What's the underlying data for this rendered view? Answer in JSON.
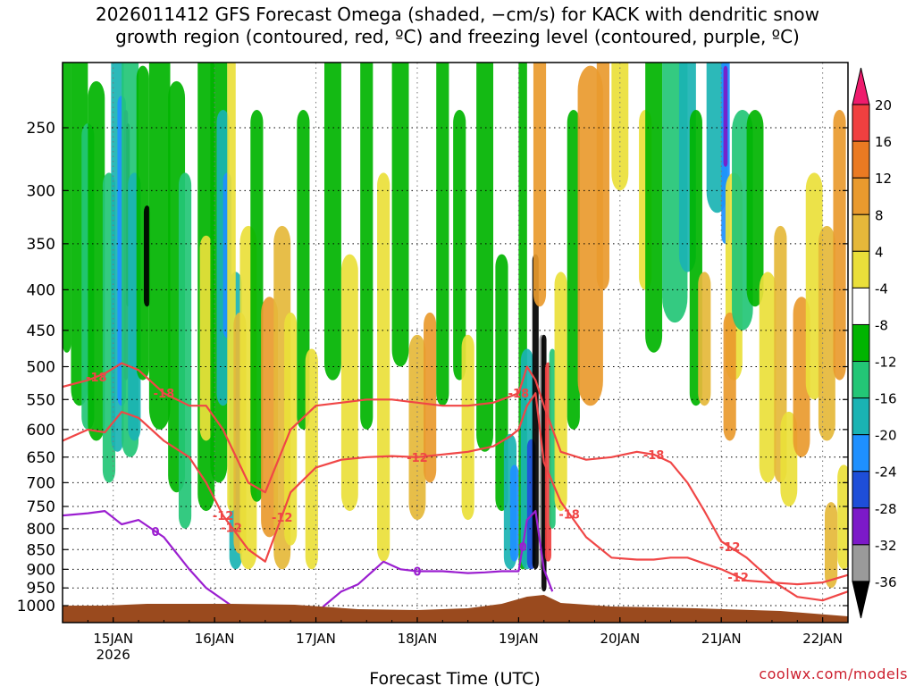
{
  "header": {
    "title_line1": "2026011412 GFS Forecast Omega (shaded, −cm/s) for KACK with dendritic snow",
    "title_line2": "growth region (contoured, red, ºC) and freezing level (contoured, purple, ºC)"
  },
  "footer": {
    "credit": "coolwx.com/models"
  },
  "chart_data": {
    "type": "heatmap",
    "title": "2026011412 GFS Forecast Omega (shaded, −cm/s) for KACK with dendritic snow growth region (contoured, red, ºC) and freezing level (contoured, purple, ºC)",
    "xlabel": "Forecast Time (UTC)",
    "ylabel": "",
    "x_range_hours": [
      0,
      186
    ],
    "x_ticks": [
      {
        "hour": 12,
        "label": "15JAN",
        "sublabel": "2026"
      },
      {
        "hour": 36,
        "label": "16JAN"
      },
      {
        "hour": 60,
        "label": "17JAN"
      },
      {
        "hour": 84,
        "label": "18JAN"
      },
      {
        "hour": 108,
        "label": "19JAN"
      },
      {
        "hour": 132,
        "label": "20JAN"
      },
      {
        "hour": 156,
        "label": "21JAN"
      },
      {
        "hour": 180,
        "label": "22JAN"
      }
    ],
    "y_range_hpa": [
      1000,
      200
    ],
    "y_ticks": [
      250,
      300,
      350,
      400,
      450,
      500,
      550,
      600,
      650,
      700,
      750,
      800,
      850,
      900,
      950,
      1000
    ],
    "colorbar": {
      "units": "−cm/s",
      "labels": [
        20,
        16,
        12,
        8,
        4,
        -4,
        -8,
        -12,
        -16,
        -20,
        -24,
        -28,
        -32,
        -36
      ],
      "colors": [
        "#ee1c6d",
        "#f04040",
        "#ea7a22",
        "#e99a2e",
        "#e5b83a",
        "#eadf3a",
        "#ffffff",
        "#00b400",
        "#23c676",
        "#1ab3b3",
        "#1e90ff",
        "#1e4ed8",
        "#7c19c8",
        "#9a9a9a",
        "#000000"
      ]
    },
    "contour_labels_red": [
      "-18",
      "-18",
      "-12",
      "-12",
      "-18",
      "-12",
      "-12",
      "-18",
      "-18",
      "-12",
      "-12"
    ],
    "contour_labels_purple": [
      "0",
      "0",
      "0"
    ],
    "series": [
      {
        "name": "-12C level (red)",
        "hours": [
          0,
          6,
          10,
          14,
          18,
          24,
          30,
          34,
          38,
          44,
          48,
          54,
          60,
          66,
          72,
          78,
          84,
          90,
          96,
          102,
          106,
          108,
          110,
          112,
          114,
          118,
          124,
          130,
          136,
          140,
          144,
          148,
          152,
          156,
          162,
          168,
          174,
          180,
          186
        ],
        "values": [
          620,
          600,
          605,
          570,
          580,
          620,
          650,
          700,
          770,
          850,
          880,
          720,
          670,
          655,
          650,
          648,
          650,
          645,
          640,
          630,
          612,
          600,
          560,
          540,
          660,
          740,
          820,
          870,
          875,
          875,
          870,
          870,
          885,
          900,
          930,
          935,
          940,
          935,
          915
        ]
      },
      {
        "name": "-18C level (red)",
        "hours": [
          0,
          6,
          10,
          14,
          18,
          24,
          30,
          34,
          38,
          44,
          48,
          54,
          60,
          66,
          72,
          78,
          84,
          90,
          96,
          102,
          106,
          108,
          110,
          112,
          114,
          118,
          124,
          130,
          136,
          140,
          144,
          148,
          152,
          156,
          162,
          168,
          174,
          180,
          186
        ],
        "values": [
          530,
          520,
          510,
          495,
          505,
          540,
          560,
          560,
          600,
          700,
          720,
          600,
          560,
          555,
          550,
          550,
          555,
          560,
          560,
          555,
          545,
          540,
          500,
          520,
          560,
          640,
          655,
          650,
          640,
          645,
          660,
          700,
          760,
          830,
          870,
          930,
          975,
          985,
          960
        ]
      },
      {
        "name": "0C freezing level (purple)",
        "hours": [
          0,
          6,
          10,
          14,
          18,
          24,
          30,
          34,
          40,
          46,
          52,
          58,
          62,
          66,
          70,
          76,
          80,
          84,
          90,
          96,
          100,
          104,
          108,
          110,
          112,
          114,
          116
        ],
        "values": [
          770,
          765,
          760,
          790,
          780,
          820,
          900,
          950,
          1000,
          1050,
          1050,
          1050,
          1000,
          960,
          940,
          880,
          900,
          905,
          905,
          910,
          908,
          905,
          905,
          780,
          760,
          900,
          960
        ]
      }
    ]
  }
}
